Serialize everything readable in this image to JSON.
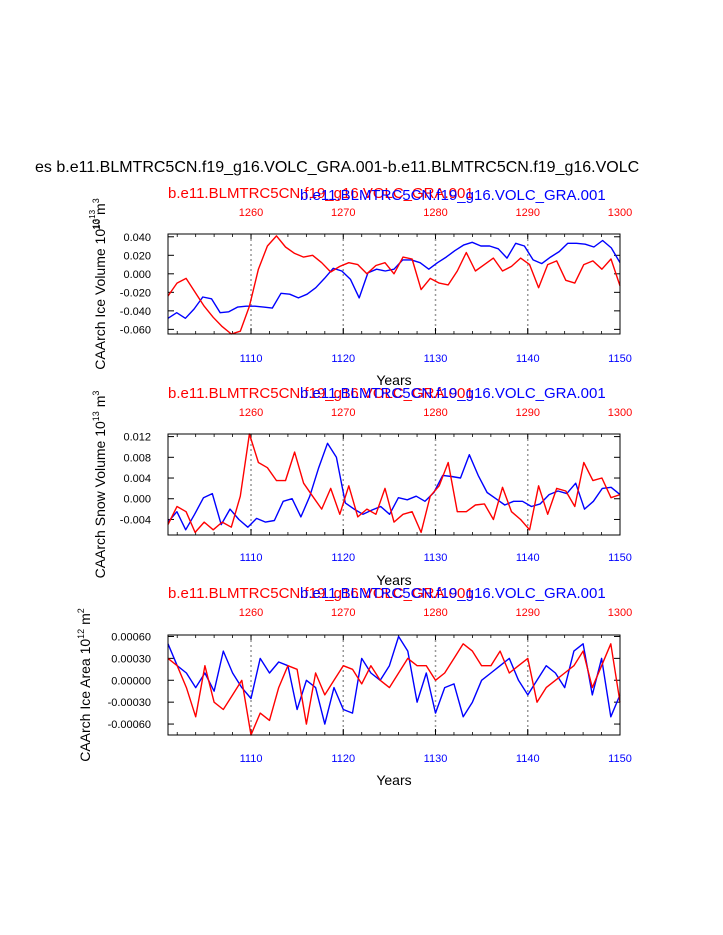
{
  "figure": {
    "suptitle": "es b.e11.BLMTRC5CN.f19_g16.VOLC_GRA.001-b.e11.BLMTRC5CN.f19_g16.VOLC",
    "colors": {
      "series_red": "#ff0000",
      "series_blue": "#0000ff",
      "axis": "#000000",
      "grid": "#999999"
    }
  },
  "chart_data": [
    {
      "type": "line",
      "title_blue": "b.e11.BLMTRC5CN.f19_g16.VOLC_GRA.001",
      "title_red": "b.e11.BLMTRC5CN.f19_g16.VOLC_GRA.001",
      "xlabel": "Years",
      "ylabel": "CAArch Ice Volume 10",
      "ylabel_exp": "13",
      "ylabel_unit": " m",
      "ylabel_unit_exp": "3",
      "exp_label": "10",
      "exp_label_sup": "13",
      "ylim": [
        -0.065,
        0.043
      ],
      "yticks": [
        -0.06,
        -0.04,
        -0.02,
        0.0,
        0.02,
        0.04
      ],
      "ytick_labels": [
        "-0.060",
        "-0.040",
        "-0.020",
        "0.000",
        "0.020",
        "0.040"
      ],
      "bottom_axis": {
        "range": [
          1101,
          1150
        ],
        "ticks": [
          1110,
          1120,
          1130,
          1140,
          1150
        ],
        "labels": [
          "1110",
          "1120",
          "1130",
          "1140",
          "1150"
        ]
      },
      "top_axis": {
        "range": [
          1251,
          1300
        ],
        "ticks": [
          1260,
          1270,
          1280,
          1290,
          1300
        ],
        "labels": [
          "1260",
          "1270",
          "1280",
          "1290",
          "1300"
        ]
      },
      "series": [
        {
          "name": "b.e11.BLMTRC5CN.f19_g16.VOLC_GRA.001 (years 1101-1150)",
          "color": "blue",
          "values": [
            -0.048,
            -0.042,
            -0.048,
            -0.038,
            -0.025,
            -0.027,
            -0.042,
            -0.041,
            -0.036,
            -0.035,
            -0.035,
            -0.036,
            -0.037,
            -0.021,
            -0.022,
            -0.026,
            -0.022,
            -0.015,
            -0.005,
            0.006,
            0.003,
            -0.006,
            -0.026,
            0.001,
            0.005,
            0.003,
            0.005,
            0.015,
            0.015,
            0.012,
            0.005,
            0.012,
            0.018,
            0.025,
            0.031,
            0.034,
            0.03,
            0.03,
            0.027,
            0.017,
            0.033,
            0.03,
            0.015,
            0.011,
            0.018,
            0.024,
            0.033,
            0.033,
            0.032,
            0.029,
            0.036,
            0.028,
            0.012
          ]
        },
        {
          "name": "b.e11.BLMTRC5CN.f19_g16.VOLC_GRA.001 (years 1251-1300)",
          "color": "red",
          "values": [
            -0.024,
            -0.01,
            -0.005,
            -0.02,
            -0.035,
            -0.047,
            -0.057,
            -0.065,
            -0.062,
            -0.035,
            0.005,
            0.03,
            0.041,
            0.029,
            0.022,
            0.018,
            0.02,
            0.012,
            0.002,
            0.008,
            0.012,
            0.01,
            0.0,
            0.009,
            0.012,
            0.0,
            0.018,
            0.016,
            -0.017,
            -0.005,
            -0.01,
            -0.012,
            0.003,
            0.023,
            0.003,
            0.01,
            0.017,
            0.003,
            0.008,
            0.017,
            0.01,
            -0.015,
            0.01,
            0.014,
            -0.007,
            -0.01,
            0.01,
            0.014,
            0.005,
            0.016,
            -0.013
          ]
        }
      ]
    },
    {
      "type": "line",
      "title_blue": "b.e11.BLMTRC5CN.f19_g16.VOLC_GRA.001",
      "title_red": "b.e11.BLMTRC5CN.f19_g16.VOLC_GRA.001",
      "xlabel": "Years",
      "ylabel": "CAArch Snow Volume 10",
      "ylabel_exp": "13",
      "ylabel_unit": " m",
      "ylabel_unit_exp": "3",
      "ylim": [
        -0.007,
        0.0125
      ],
      "yticks": [
        -0.004,
        0.0,
        0.004,
        0.008,
        0.012
      ],
      "ytick_labels": [
        "-0.004",
        "0.000",
        "0.004",
        "0.008",
        "0.012"
      ],
      "bottom_axis": {
        "range": [
          1101,
          1150
        ],
        "ticks": [
          1110,
          1120,
          1130,
          1140,
          1150
        ],
        "labels": [
          "1110",
          "1120",
          "1130",
          "1140",
          "1150"
        ]
      },
      "top_axis": {
        "range": [
          1251,
          1300
        ],
        "ticks": [
          1260,
          1270,
          1280,
          1290,
          1300
        ],
        "labels": [
          "1260",
          "1270",
          "1280",
          "1290",
          "1300"
        ]
      },
      "series": [
        {
          "name": "b.e11.BLMTRC5CN.f19_g16.VOLC_GRA.001 (years 1101-1150)",
          "color": "blue",
          "values": [
            -0.0045,
            -0.0025,
            -0.006,
            -0.003,
            0.0002,
            0.001,
            -0.005,
            -0.002,
            -0.004,
            -0.0055,
            -0.0038,
            -0.0045,
            -0.0042,
            -0.0005,
            0.0,
            -0.0035,
            0.0005,
            0.006,
            0.0107,
            0.008,
            -0.0008,
            -0.002,
            -0.003,
            -0.0022,
            -0.0015,
            -0.003,
            0.0002,
            -0.0002,
            0.0005,
            -0.0005,
            0.0012,
            0.0045,
            0.0043,
            0.004,
            0.0085,
            0.0045,
            0.0012,
            0.0,
            -0.0012,
            -0.0005,
            -0.0005,
            -0.0015,
            -0.001,
            0.0008,
            0.0015,
            0.001,
            0.003,
            -0.002,
            -0.0005,
            0.002,
            0.0022,
            0.0008
          ]
        },
        {
          "name": "b.e11.BLMTRC5CN.f19_g16.VOLC_GRA.001 (years 1251-1300)",
          "color": "red",
          "values": [
            -0.005,
            -0.0015,
            -0.0025,
            -0.0065,
            -0.0045,
            -0.006,
            -0.0045,
            -0.0055,
            0.0005,
            0.0125,
            0.007,
            0.006,
            0.0035,
            0.0035,
            0.009,
            0.003,
            0.0005,
            -0.002,
            0.002,
            -0.003,
            0.0025,
            -0.0035,
            -0.002,
            -0.003,
            0.002,
            -0.0045,
            -0.003,
            -0.0025,
            -0.0065,
            0.0005,
            0.0025,
            0.007,
            -0.0025,
            -0.0025,
            -0.0012,
            -0.001,
            -0.004,
            0.0022,
            -0.0025,
            -0.004,
            -0.006,
            0.0025,
            -0.003,
            0.002,
            0.0015,
            -0.0015,
            0.007,
            0.0035,
            0.004,
            0.0002,
            0.0008
          ]
        }
      ]
    },
    {
      "type": "line",
      "title_blue": "b.e11.BLMTRC5CN.f19_g16.VOLC_GRA.001",
      "title_red": "b.e11.BLMTRC5CN.f19_g16.VOLC_GRA.001",
      "xlabel": "Years",
      "ylabel": "CAArch Ice Area 10",
      "ylabel_exp": "12",
      "ylabel_unit": " m",
      "ylabel_unit_exp": "2",
      "ylim": [
        -0.00075,
        0.00062
      ],
      "yticks": [
        -0.0006,
        -0.0003,
        0.0,
        0.0003,
        0.0006
      ],
      "ytick_labels": [
        "-0.00060",
        "-0.00030",
        "0.00000",
        "0.00030",
        "0.00060"
      ],
      "bottom_axis": {
        "range": [
          1101,
          1150
        ],
        "ticks": [
          1110,
          1120,
          1130,
          1140,
          1150
        ],
        "labels": [
          "1110",
          "1120",
          "1130",
          "1140",
          "1150"
        ]
      },
      "top_axis": {
        "range": [
          1251,
          1300
        ],
        "ticks": [
          1260,
          1270,
          1280,
          1290,
          1300
        ],
        "labels": [
          "1260",
          "1270",
          "1280",
          "1290",
          "1300"
        ]
      },
      "series": [
        {
          "name": "b.e11.BLMTRC5CN.f19_g16.VOLC_GRA.001 (years 1101-1150)",
          "color": "blue",
          "values": [
            0.0005,
            0.0002,
            0.0001,
            -0.0001,
            0.0001,
            -0.00015,
            0.0004,
            0.0001,
            -0.0001,
            -0.00025,
            0.0003,
            0.0001,
            0.00025,
            0.0002,
            -0.0004,
            0.0,
            -0.0001,
            -0.0006,
            -0.0001,
            -0.0004,
            -0.00045,
            0.0003,
            0.0001,
            0.0,
            0.0002,
            0.0006,
            0.0004,
            -0.0003,
            0.0001,
            -0.00045,
            -0.0001,
            -5e-05,
            -0.0005,
            -0.0003,
            0.0,
            0.0001,
            0.0002,
            0.0003,
            0.0,
            -0.0002,
            0.0,
            0.0002,
            0.0001,
            -0.0001,
            0.0004,
            0.0005,
            -0.0002,
            0.0003,
            -0.0005,
            -0.0002
          ]
        },
        {
          "name": "b.e11.BLMTRC5CN.f19_g16.VOLC_GRA.001 (years 1251-1300)",
          "color": "red",
          "values": [
            0.0003,
            0.0002,
            -0.0001,
            -0.0005,
            0.0002,
            -0.0003,
            -0.0004,
            -0.0002,
            0.0,
            -0.00075,
            -0.00045,
            -0.00055,
            -0.0001,
            0.0002,
            0.00015,
            -0.0006,
            0.0001,
            -0.0002,
            0.0,
            0.0002,
            0.00015,
            -5e-05,
            0.0002,
            0.0,
            -0.0001,
            0.0001,
            0.0003,
            0.0002,
            0.0002,
            0.0,
            0.0001,
            0.0003,
            0.0005,
            0.0004,
            0.0002,
            0.0002,
            0.0004,
            0.0001,
            0.0002,
            0.0003,
            -0.0003,
            -0.0001,
            0.0,
            0.0001,
            0.0002,
            0.0004,
            -0.0001,
            0.0002,
            0.0005,
            -0.0003
          ]
        }
      ]
    }
  ]
}
